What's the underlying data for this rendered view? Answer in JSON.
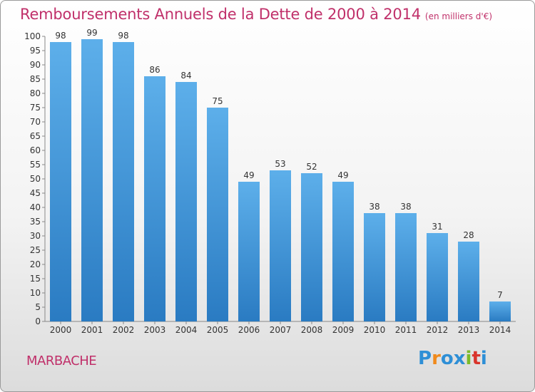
{
  "header": {
    "title": "Remboursements Annuels de la Dette de 2000 à 2014",
    "subtitle": "(en milliers d'€)"
  },
  "commune": "MARBACHE",
  "logo": {
    "text": "Proxiti",
    "letters": [
      "P",
      "r",
      "o",
      "x",
      "i",
      "t",
      "i"
    ],
    "colors": [
      "#2e8fd6",
      "#f08a1c",
      "#2e8fd6",
      "#2e8fd6",
      "#7cbb2a",
      "#d9352c",
      "#2e8fd6"
    ]
  },
  "chart_data": {
    "type": "bar",
    "title": "Remboursements Annuels de la Dette de 2000 à 2014",
    "subtitle": "(en milliers d'€)",
    "categories": [
      "2000",
      "2001",
      "2002",
      "2003",
      "2004",
      "2005",
      "2006",
      "2007",
      "2008",
      "2009",
      "2010",
      "2011",
      "2012",
      "2013",
      "2014"
    ],
    "values": [
      98,
      99,
      98,
      86,
      84,
      75,
      49,
      53,
      52,
      49,
      38,
      38,
      31,
      28,
      7
    ],
    "ylim": [
      0,
      100
    ],
    "yticks": [
      0,
      5,
      10,
      15,
      20,
      25,
      30,
      35,
      40,
      45,
      50,
      55,
      60,
      65,
      70,
      75,
      80,
      85,
      90,
      95,
      100
    ],
    "grid": false,
    "bar_color_top": "#5dafea",
    "bar_color_bottom": "#2a7bc2"
  }
}
